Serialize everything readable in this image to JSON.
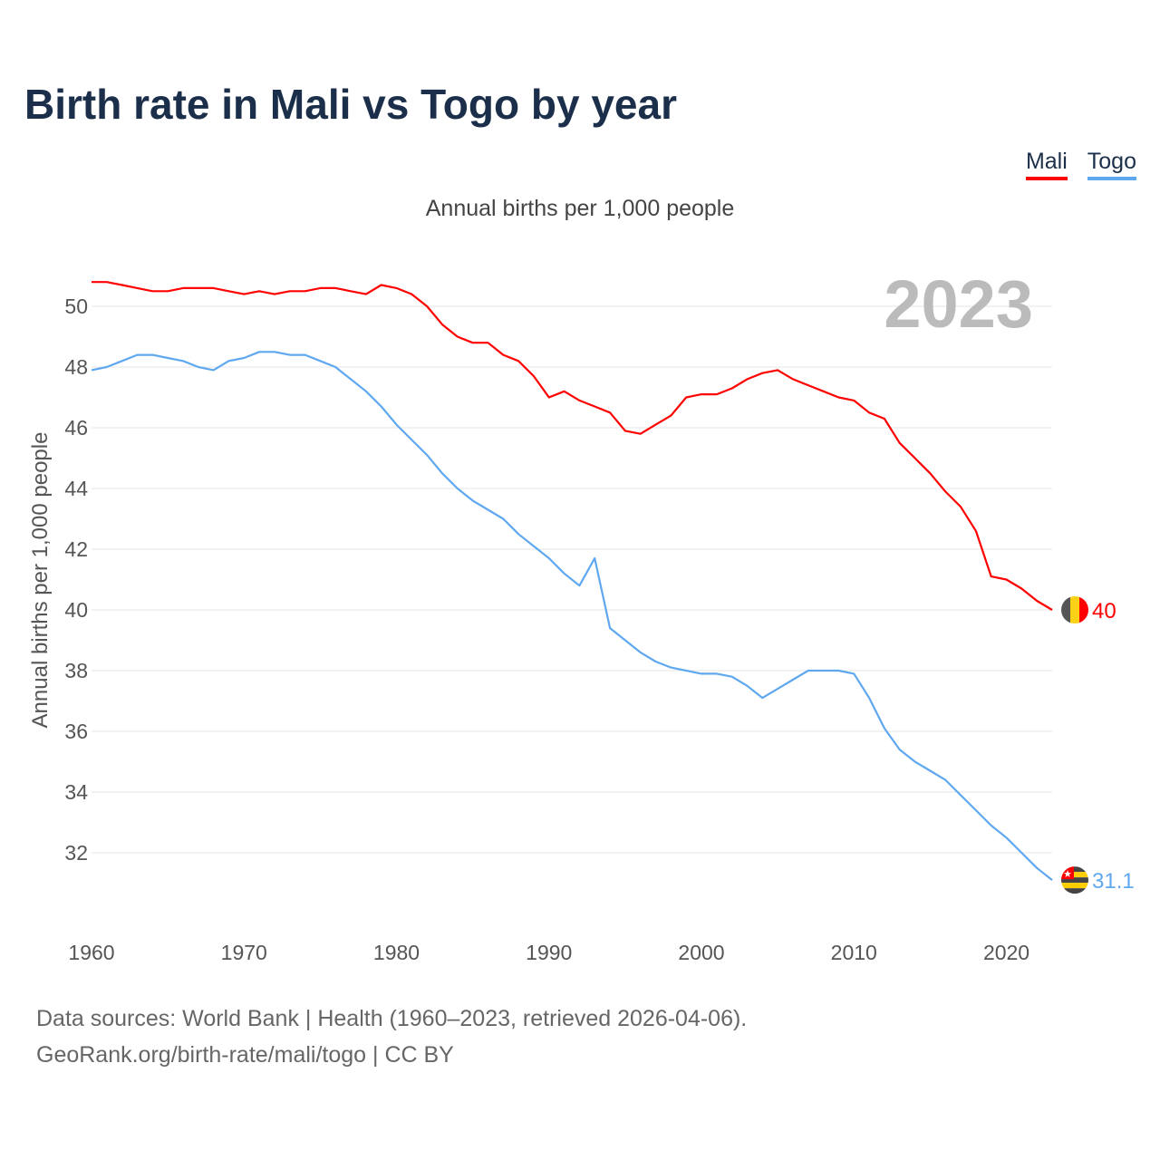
{
  "title": "Birth rate in Mali vs Togo by year",
  "subtitle": "Annual births per 1,000 people",
  "footer": {
    "line1": "Data sources: World Bank | Health (1960–2023, retrieved 2026-04-06).",
    "line2": "GeoRank.org/birth-rate/mali/togo | CC BY"
  },
  "chart_data": {
    "type": "line",
    "title": "Birth rate in Mali vs Togo by year",
    "xlabel": "",
    "ylabel": "Annual births per 1,000 people",
    "year_label": "2023",
    "xlim": [
      1960,
      2023
    ],
    "ylim": [
      30,
      51.5
    ],
    "xticks": [
      "1960",
      "1970",
      "1980",
      "1990",
      "2000",
      "2010",
      "2020"
    ],
    "yticks": [
      "32",
      "34",
      "36",
      "38",
      "40",
      "42",
      "44",
      "46",
      "48",
      "50"
    ],
    "grid": true,
    "legend_position": "top-right",
    "x": [
      1960,
      1961,
      1962,
      1963,
      1964,
      1965,
      1966,
      1967,
      1968,
      1969,
      1970,
      1971,
      1972,
      1973,
      1974,
      1975,
      1976,
      1977,
      1978,
      1979,
      1980,
      1981,
      1982,
      1983,
      1984,
      1985,
      1986,
      1987,
      1988,
      1989,
      1990,
      1991,
      1992,
      1993,
      1994,
      1995,
      1996,
      1997,
      1998,
      1999,
      2000,
      2001,
      2002,
      2003,
      2004,
      2005,
      2006,
      2007,
      2008,
      2009,
      2010,
      2011,
      2012,
      2013,
      2014,
      2015,
      2016,
      2017,
      2018,
      2019,
      2020,
      2021,
      2022,
      2023
    ],
    "series": [
      {
        "name": "Mali",
        "color": "#ff0000",
        "end_label": "40",
        "values": [
          50.8,
          50.8,
          50.7,
          50.6,
          50.5,
          50.5,
          50.6,
          50.6,
          50.6,
          50.5,
          50.4,
          50.5,
          50.4,
          50.5,
          50.5,
          50.6,
          50.6,
          50.5,
          50.4,
          50.7,
          50.6,
          50.4,
          50.0,
          49.4,
          49.0,
          48.8,
          48.8,
          48.4,
          48.2,
          47.7,
          47.0,
          47.2,
          46.9,
          46.7,
          46.5,
          45.9,
          45.8,
          46.1,
          46.4,
          47.0,
          47.1,
          47.1,
          47.3,
          47.6,
          47.8,
          47.9,
          47.6,
          47.4,
          47.2,
          47.0,
          46.9,
          46.5,
          46.3,
          45.5,
          45.0,
          44.5,
          43.9,
          43.4,
          42.6,
          41.1,
          41.0,
          40.7,
          40.3,
          40.0
        ]
      },
      {
        "name": "Togo",
        "color": "#5fa8f0",
        "end_label": "31.1",
        "values": [
          47.9,
          48.0,
          48.2,
          48.4,
          48.4,
          48.3,
          48.2,
          48.0,
          47.9,
          48.2,
          48.3,
          48.5,
          48.5,
          48.4,
          48.4,
          48.2,
          48.0,
          47.6,
          47.2,
          46.7,
          46.1,
          45.6,
          45.1,
          44.5,
          44.0,
          43.6,
          43.3,
          43.0,
          42.5,
          42.1,
          41.7,
          41.2,
          40.8,
          41.7,
          39.4,
          39.0,
          38.6,
          38.3,
          38.1,
          38.0,
          37.9,
          37.9,
          37.8,
          37.5,
          37.1,
          37.4,
          37.7,
          38.0,
          38.0,
          38.0,
          37.9,
          37.1,
          36.1,
          35.4,
          35.0,
          34.7,
          34.4,
          33.9,
          33.4,
          32.9,
          32.5,
          32.0,
          31.5,
          31.1
        ]
      }
    ]
  }
}
